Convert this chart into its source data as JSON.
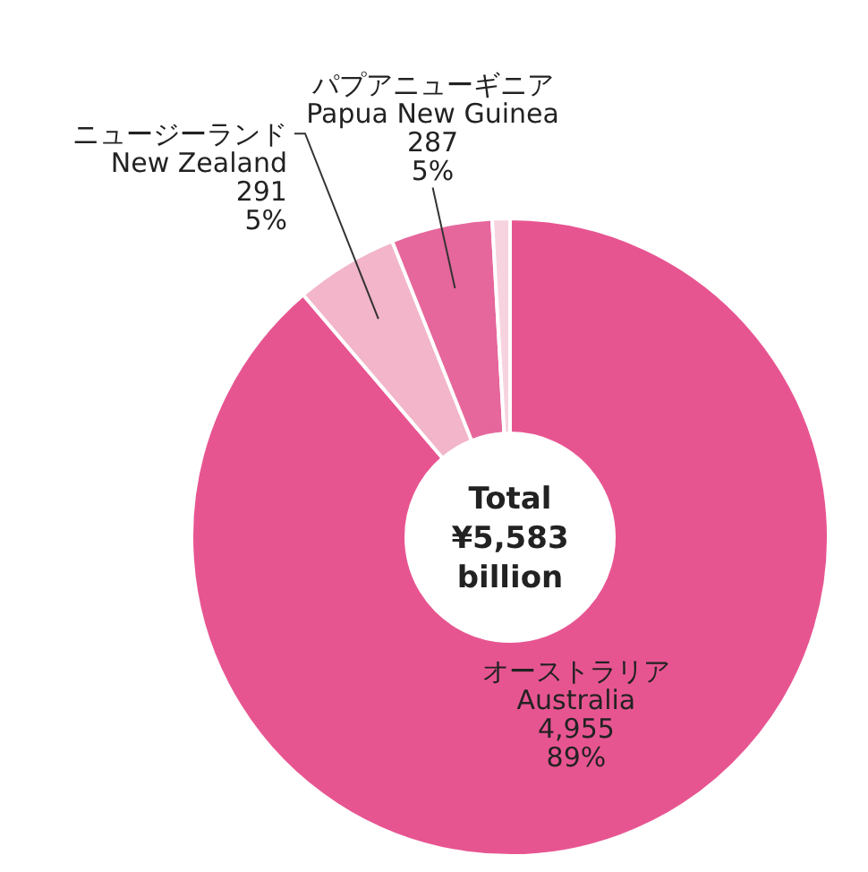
{
  "chart_data": {
    "type": "donut",
    "title": "Total ¥5,583 billion",
    "categories": [
      "オーストラリア\nAustralia",
      "ニュージーランド\nNew Zealand",
      "パプアニューギニア\nPapua New Guinea",
      null
    ],
    "values": [
      4955,
      291,
      287,
      50
    ],
    "colors": [
      "#e75591",
      "#f2b5c9",
      "#e6679c",
      "#f7d3e0"
    ],
    "value_labels": [
      "4,955\n89%",
      "291\n5%",
      "287\n5%",
      null
    ]
  }
}
